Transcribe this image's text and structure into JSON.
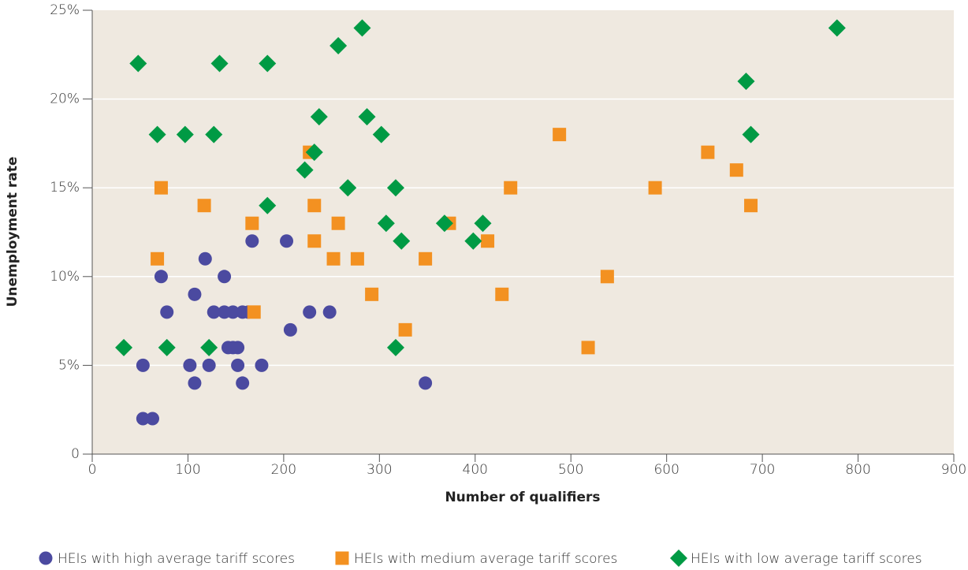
{
  "chart_data": {
    "type": "scatter",
    "xlabel": "Number of qualifiers",
    "ylabel": "Unemployment rate",
    "xlim": [
      0,
      900
    ],
    "xticks": [
      0,
      100,
      200,
      300,
      400,
      500,
      600,
      700,
      800,
      900
    ],
    "ylim": [
      0,
      25
    ],
    "yticks": [
      0,
      {
        "value": 5,
        "label": "5%"
      },
      {
        "value": 10,
        "label": "10%"
      },
      {
        "value": 15,
        "label": "15%"
      },
      {
        "value": 20,
        "label": "20%"
      },
      {
        "value": 25,
        "label": "25%"
      }
    ],
    "grid": true,
    "legend": "bottom",
    "series": [
      {
        "name": "HEIs with high average tariff scores",
        "color": "#4b4aa0",
        "marker": "circle",
        "x": [
          53,
          53,
          63,
          72,
          78,
          102,
          107,
          107,
          118,
          122,
          127,
          138,
          138,
          142,
          147,
          147,
          152,
          152,
          157,
          157,
          163,
          167,
          177,
          203,
          207,
          227,
          248,
          348
        ],
        "values": [
          5,
          2,
          2,
          10,
          8,
          5,
          9,
          4,
          11,
          5,
          8,
          10,
          8,
          6,
          8,
          6,
          6,
          5,
          8,
          4,
          8,
          12,
          5,
          12,
          7,
          8,
          8,
          4
        ]
      },
      {
        "name": "HEIs with medium average tariff scores",
        "color": "#f39121",
        "marker": "square",
        "x": [
          68,
          72,
          117,
          167,
          169,
          227,
          232,
          232,
          257,
          252,
          277,
          292,
          327,
          348,
          373,
          413,
          428,
          437,
          488,
          518,
          538,
          588,
          643,
          673,
          688
        ],
        "values": [
          11,
          15,
          14,
          13,
          8,
          17,
          14,
          12,
          13,
          11,
          11,
          9,
          7,
          11,
          13,
          12,
          9,
          15,
          18,
          6,
          10,
          15,
          17,
          16,
          14
        ]
      },
      {
        "name": "HEIs with low average tariff scores",
        "color": "#009a44",
        "marker": "diamond",
        "x": [
          33,
          48,
          68,
          78,
          97,
          122,
          127,
          133,
          183,
          183,
          222,
          232,
          237,
          257,
          267,
          282,
          287,
          302,
          307,
          317,
          317,
          323,
          368,
          398,
          408,
          683,
          688,
          778
        ],
        "values": [
          6,
          22,
          18,
          6,
          18,
          6,
          18,
          22,
          22,
          14,
          16,
          17,
          19,
          23,
          15,
          24,
          19,
          18,
          13,
          15,
          6,
          12,
          13,
          12,
          13,
          21,
          18,
          24
        ]
      }
    ]
  }
}
